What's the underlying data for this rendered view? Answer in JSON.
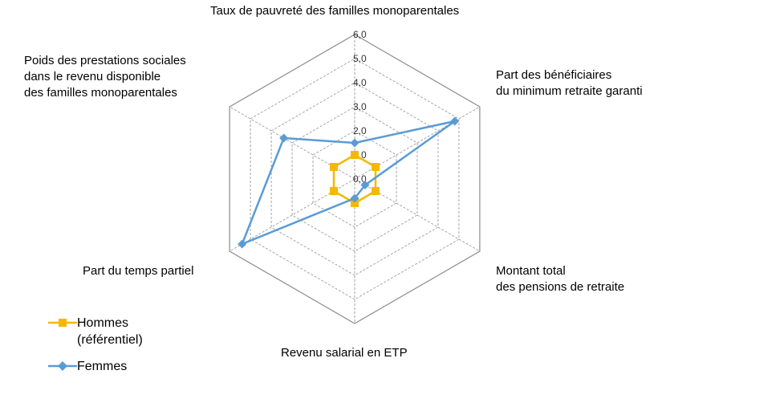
{
  "chart_data": {
    "type": "radar",
    "axes": [
      "Taux de pauvreté des familles monoparentales",
      "Part des bénéficiaires\ndu minimum retraite garanti",
      "Montant total\ndes pensions de retraite",
      "Revenu salarial en ETP",
      "Part du temps partiel",
      "Poids des prestations sociales\ndans le revenu disponible\ndes familles monoparentales"
    ],
    "rlim": [
      0,
      6
    ],
    "ticks": [
      "0,0",
      "1,0",
      "2,0",
      "3,0",
      "4,0",
      "5,0",
      "6,0"
    ],
    "grid": true,
    "legend_position": "bottom-left",
    "series": [
      {
        "name": "Hommes\n(référentiel)",
        "values": [
          1,
          1,
          1,
          1,
          1,
          1
        ],
        "color": "#F5B800",
        "marker": "square"
      },
      {
        "name": "Femmes",
        "values": [
          1.5,
          4.8,
          0.5,
          0.8,
          5.4,
          3.4
        ],
        "color": "#5B9BD5",
        "marker": "diamond"
      }
    ]
  }
}
